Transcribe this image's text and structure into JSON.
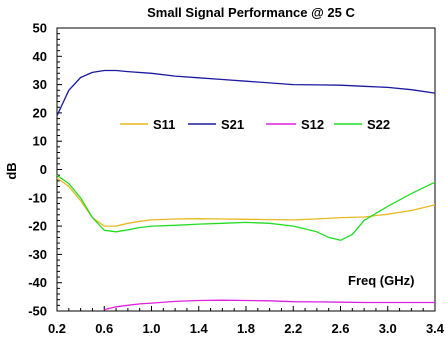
{
  "chart_data": {
    "type": "line",
    "title": "Small Signal Performance @ 25 C",
    "xlabel": "",
    "ylabel": "dB",
    "annotation": "Freq (GHz)",
    "xlim": [
      0.2,
      3.4
    ],
    "ylim": [
      -50,
      50
    ],
    "x_ticks": [
      "0.2",
      "0.6",
      "1.0",
      "1.4",
      "1.8",
      "2.2",
      "2.6",
      "3.0",
      "3.4"
    ],
    "y_ticks": [
      "50",
      "40",
      "30",
      "20",
      "10",
      "0",
      "-10",
      "-20",
      "-30",
      "-40",
      "-50"
    ],
    "grid": false,
    "legend_position": "upper-center",
    "series": [
      {
        "name": "S11",
        "color": "#E8B820",
        "points": [
          [
            0.2,
            -3
          ],
          [
            0.3,
            -6
          ],
          [
            0.4,
            -11
          ],
          [
            0.5,
            -17
          ],
          [
            0.6,
            -20
          ],
          [
            0.7,
            -20
          ],
          [
            0.8,
            -19
          ],
          [
            0.9,
            -18.3
          ],
          [
            1.0,
            -17.8
          ],
          [
            1.2,
            -17.5
          ],
          [
            1.4,
            -17.4
          ],
          [
            1.6,
            -17.5
          ],
          [
            1.8,
            -17.6
          ],
          [
            2.0,
            -17.7
          ],
          [
            2.2,
            -17.8
          ],
          [
            2.4,
            -17.5
          ],
          [
            2.6,
            -17
          ],
          [
            2.8,
            -16.8
          ],
          [
            3.0,
            -15.8
          ],
          [
            3.2,
            -14.5
          ],
          [
            3.4,
            -12.5
          ]
        ]
      },
      {
        "name": "S21",
        "color": "#1A1AA0",
        "points": [
          [
            0.2,
            19
          ],
          [
            0.3,
            28
          ],
          [
            0.4,
            32.5
          ],
          [
            0.5,
            34.3
          ],
          [
            0.6,
            35
          ],
          [
            0.7,
            35
          ],
          [
            0.8,
            34.6
          ],
          [
            1.0,
            34
          ],
          [
            1.2,
            33
          ],
          [
            1.4,
            32.4
          ],
          [
            1.6,
            31.8
          ],
          [
            1.8,
            31.2
          ],
          [
            2.0,
            30.6
          ],
          [
            2.2,
            30
          ],
          [
            2.4,
            29.9
          ],
          [
            2.6,
            29.8
          ],
          [
            2.8,
            29.4
          ],
          [
            3.0,
            29
          ],
          [
            3.2,
            28.2
          ],
          [
            3.4,
            27
          ]
        ]
      },
      {
        "name": "S12",
        "color": "#E020E0",
        "points": [
          [
            0.6,
            -49.5
          ],
          [
            0.7,
            -48.5
          ],
          [
            0.8,
            -48
          ],
          [
            0.9,
            -47.5
          ],
          [
            1.0,
            -47.2
          ],
          [
            1.2,
            -46.6
          ],
          [
            1.4,
            -46.3
          ],
          [
            1.6,
            -46.2
          ],
          [
            1.8,
            -46.3
          ],
          [
            2.0,
            -46.4
          ],
          [
            2.2,
            -46.7
          ],
          [
            2.4,
            -46.8
          ],
          [
            2.6,
            -46.9
          ],
          [
            2.8,
            -47
          ],
          [
            3.0,
            -47
          ],
          [
            3.2,
            -47
          ],
          [
            3.4,
            -47
          ]
        ]
      },
      {
        "name": "S22",
        "color": "#22DD22",
        "points": [
          [
            0.2,
            -2
          ],
          [
            0.3,
            -5
          ],
          [
            0.4,
            -10
          ],
          [
            0.5,
            -17
          ],
          [
            0.6,
            -21.5
          ],
          [
            0.7,
            -22
          ],
          [
            0.8,
            -21.3
          ],
          [
            0.9,
            -20.5
          ],
          [
            1.0,
            -20
          ],
          [
            1.2,
            -19.7
          ],
          [
            1.4,
            -19.3
          ],
          [
            1.6,
            -19
          ],
          [
            1.8,
            -18.7
          ],
          [
            2.0,
            -19
          ],
          [
            2.2,
            -20
          ],
          [
            2.4,
            -22
          ],
          [
            2.5,
            -24
          ],
          [
            2.6,
            -25
          ],
          [
            2.7,
            -23
          ],
          [
            2.8,
            -18
          ],
          [
            3.0,
            -13
          ],
          [
            3.2,
            -8.5
          ],
          [
            3.4,
            -4.5
          ]
        ]
      }
    ]
  }
}
